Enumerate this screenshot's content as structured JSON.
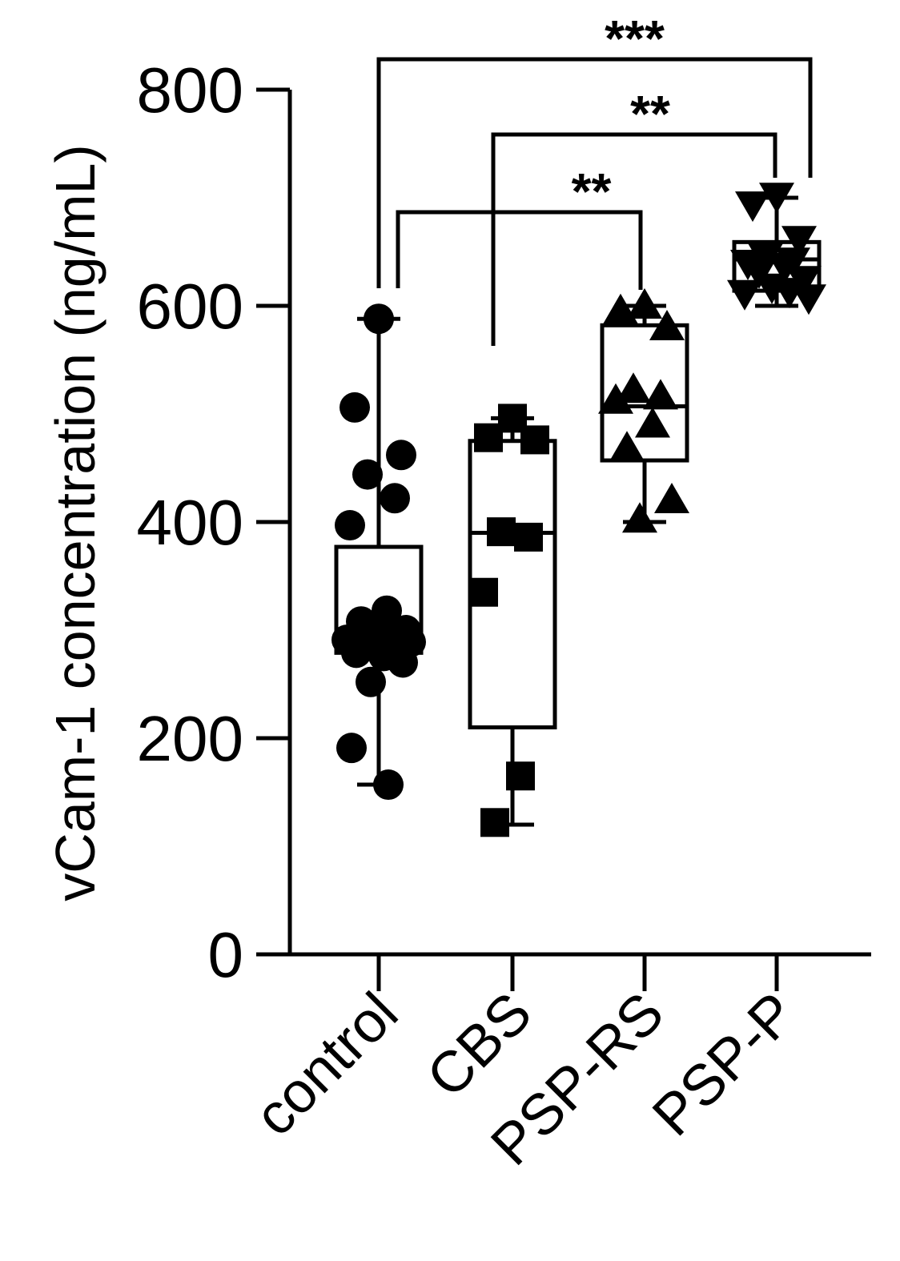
{
  "chart_data": {
    "type": "box-scatter",
    "ylabel": "vCam-1 concentration (ng/mL)",
    "ylim": [
      0,
      800
    ],
    "yticks": [
      0,
      200,
      400,
      600,
      800
    ],
    "categories": [
      "control",
      "CBS",
      "PSP-RS",
      "PSP-P"
    ],
    "groups": [
      {
        "name": "control",
        "marker": "circle",
        "box": {
          "min": 157,
          "q1": 279,
          "median": 292,
          "q3": 377,
          "max": 588
        },
        "points": [
          588,
          506,
          462,
          444,
          422,
          397,
          318,
          308,
          300,
          296,
          294,
          291,
          289,
          286,
          283,
          279,
          276,
          270,
          252,
          191,
          157
        ]
      },
      {
        "name": "CBS",
        "marker": "square",
        "box": {
          "min": 120,
          "q1": 210,
          "median": 390,
          "q3": 475,
          "max": 496
        },
        "points": [
          496,
          478,
          476,
          391,
          386,
          335,
          165,
          122
        ]
      },
      {
        "name": "PSP-RS",
        "marker": "triangle-up",
        "box": {
          "min": 400,
          "q1": 457,
          "median": 507,
          "q3": 582,
          "max": 600
        },
        "points": [
          600,
          595,
          580,
          522,
          516,
          512,
          490,
          468,
          420,
          402
        ]
      },
      {
        "name": "PSP-P",
        "marker": "triangle-down",
        "box": {
          "min": 600,
          "q1": 614,
          "median": 643,
          "q3": 659,
          "max": 700
        },
        "points": [
          702,
          694,
          662,
          646,
          642,
          640,
          637,
          632,
          625,
          618,
          614,
          612,
          608
        ]
      }
    ],
    "significance": [
      {
        "from": "control",
        "to": "PSP-RS",
        "label": "**"
      },
      {
        "from": "CBS",
        "to": "PSP-P",
        "label": "**"
      },
      {
        "from": "control",
        "to": "PSP-P",
        "label": "***"
      }
    ]
  }
}
